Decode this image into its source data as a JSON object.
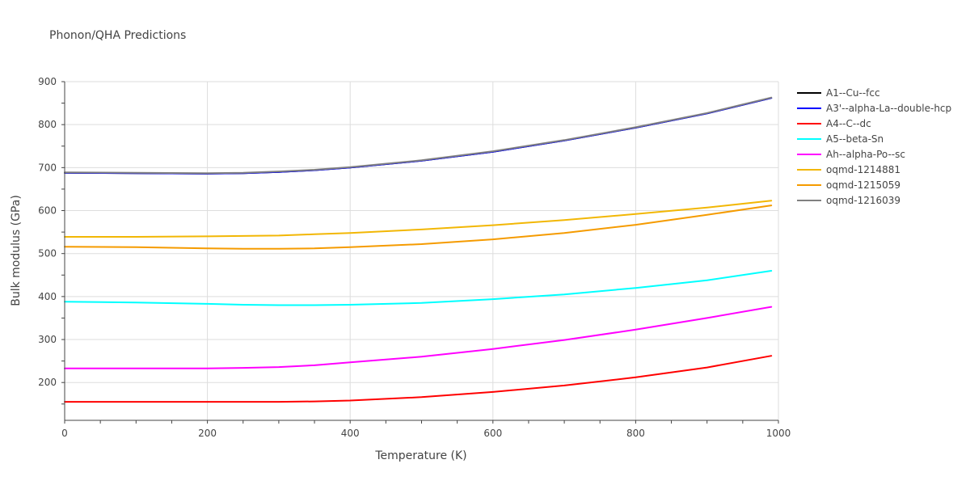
{
  "chart_data": {
    "type": "line",
    "title": "Phonon/QHA Predictions",
    "xlabel": "Temperature (K)",
    "ylabel": "Bulk modulus (GPa)",
    "xlim": [
      0,
      1000
    ],
    "ylim": [
      112,
      900
    ],
    "xticks": [
      0,
      200,
      400,
      600,
      800,
      1000
    ],
    "yticks": [
      200,
      300,
      400,
      500,
      600,
      700,
      800,
      900
    ],
    "grid": true,
    "legend_position": "right",
    "x": [
      0,
      100,
      200,
      250,
      300,
      350,
      400,
      500,
      600,
      700,
      800,
      900,
      990
    ],
    "series": [
      {
        "name": "A1--Cu--fcc",
        "color": "#000000",
        "values": [
          688,
          687,
          686,
          687,
          690,
          694,
          700,
          716,
          737,
          763,
          793,
          826,
          862
        ]
      },
      {
        "name": "A3'--alpha-La--double-hcp",
        "color": "#0000ff",
        "values": [
          688,
          687,
          686,
          687,
          690,
          694,
          700,
          716,
          737,
          763,
          793,
          826,
          862
        ]
      },
      {
        "name": "A4--C--dc",
        "color": "#ff0000",
        "values": [
          155,
          155,
          155,
          155,
          155,
          156,
          158,
          166,
          178,
          193,
          212,
          235,
          262
        ]
      },
      {
        "name": "A5--beta-Sn",
        "color": "#00ffff",
        "values": [
          388,
          386,
          383,
          381,
          380,
          380,
          381,
          385,
          394,
          405,
          420,
          438,
          460
        ]
      },
      {
        "name": "Ah--alpha-Po--sc",
        "color": "#ff00ff",
        "values": [
          233,
          233,
          233,
          234,
          236,
          240,
          247,
          260,
          278,
          299,
          323,
          350,
          376
        ]
      },
      {
        "name": "oqmd-1214881",
        "color": "#f2b705",
        "values": [
          539,
          539,
          540,
          541,
          542,
          545,
          548,
          556,
          566,
          578,
          592,
          607,
          623
        ]
      },
      {
        "name": "oqmd-1215059",
        "color": "#f59b00",
        "values": [
          516,
          515,
          512,
          511,
          511,
          512,
          515,
          522,
          533,
          548,
          567,
          590,
          612
        ]
      },
      {
        "name": "oqmd-1216039",
        "color": "#808080",
        "values": [
          689,
          688,
          687,
          688,
          691,
          695,
          701,
          717,
          738,
          764,
          794,
          827,
          863
        ]
      }
    ]
  }
}
